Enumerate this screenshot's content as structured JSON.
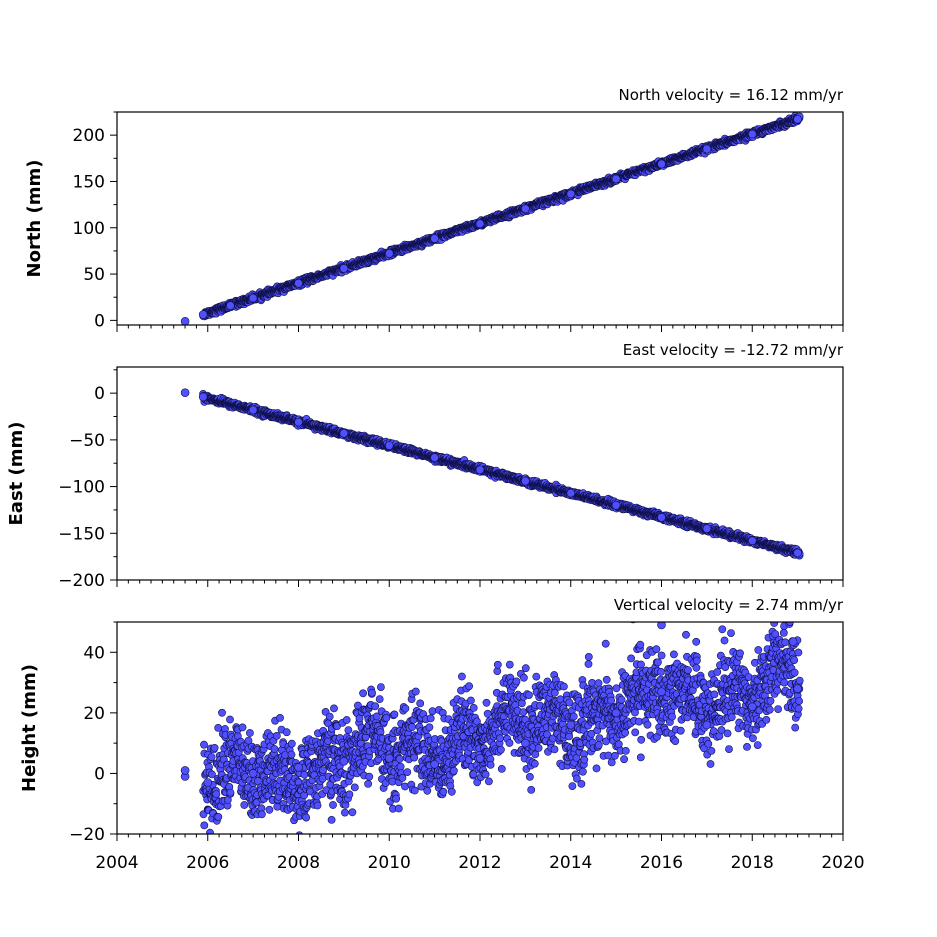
{
  "chart_data": {
    "type": "scatter",
    "x_axis": {
      "range": [
        2004,
        2020
      ],
      "ticks": [
        2004,
        2006,
        2008,
        2010,
        2012,
        2014,
        2016,
        2018,
        2020
      ],
      "minor_step": 0.25,
      "label": ""
    },
    "marker_color": "#5050ff",
    "marker_edge_color": "#10104a",
    "panels": [
      {
        "name": "north",
        "title": "North velocity = 16.12 mm/yr",
        "ylabel": "North (mm)",
        "ylim": [
          -5,
          225
        ],
        "yticks": [
          0,
          50,
          100,
          150,
          200
        ],
        "points": [
          [
            2005.5,
            -1
          ],
          [
            2005.9,
            6.3
          ],
          [
            2006.5,
            16
          ],
          [
            2007,
            24
          ],
          [
            2008,
            40
          ],
          [
            2009,
            56.1
          ],
          [
            2010,
            72.2
          ],
          [
            2011,
            88.3
          ],
          [
            2012,
            104.4
          ],
          [
            2013,
            120.5
          ],
          [
            2014,
            136.6
          ],
          [
            2015,
            152.8
          ],
          [
            2016,
            168.9
          ],
          [
            2017,
            185
          ],
          [
            2018,
            201.1
          ],
          [
            2019,
            217.2
          ]
        ],
        "trend": {
          "x0": 2005.9,
          "y0": 6.3,
          "slope_mm_per_yr": 16.12,
          "x1": 2019.05,
          "scatter_mm": 1.5
        }
      },
      {
        "name": "east",
        "title": "East velocity = -12.72 mm/yr",
        "ylabel": "East (mm)",
        "ylim": [
          -200,
          28
        ],
        "yticks": [
          0,
          -50,
          -100,
          -150,
          -200
        ],
        "points": [
          [
            2005.5,
            0.5
          ],
          [
            2005.9,
            -4
          ],
          [
            2007,
            -18
          ],
          [
            2008,
            -31
          ],
          [
            2009,
            -43
          ],
          [
            2010,
            -56
          ],
          [
            2011,
            -69
          ],
          [
            2012,
            -82
          ],
          [
            2013,
            -94
          ],
          [
            2014,
            -107
          ],
          [
            2015,
            -120
          ],
          [
            2016,
            -133
          ],
          [
            2017,
            -145
          ],
          [
            2018,
            -158
          ],
          [
            2019,
            -171
          ]
        ],
        "trend": {
          "x0": 2005.9,
          "y0": -4,
          "slope_mm_per_yr": -12.72,
          "x1": 2019.05,
          "scatter_mm": 1.5
        }
      },
      {
        "name": "height",
        "title": "Vertical velocity = 2.74 mm/yr",
        "ylabel": "Height (mm)",
        "ylim": [
          -20,
          50
        ],
        "yticks": [
          -20,
          0,
          20,
          40
        ],
        "points": [
          [
            2005.5,
            -1
          ],
          [
            2005.5,
            1
          ],
          [
            2006,
            -3
          ],
          [
            2007,
            0
          ],
          [
            2008,
            2
          ],
          [
            2009,
            4
          ],
          [
            2010,
            5
          ],
          [
            2011,
            3
          ],
          [
            2012,
            5
          ],
          [
            2013,
            10
          ],
          [
            2014,
            16
          ],
          [
            2015,
            20
          ],
          [
            2016,
            27
          ],
          [
            2016,
            49
          ],
          [
            2017,
            16
          ],
          [
            2018,
            22
          ],
          [
            2018.9,
            43.5
          ],
          [
            2019,
            28
          ]
        ],
        "trend": {
          "x0": 2005.9,
          "y0": -4,
          "slope_mm_per_yr": 2.74,
          "x1": 2019.05,
          "scatter_mm": 7,
          "seasonal_amp_mm": 4
        }
      }
    ]
  }
}
